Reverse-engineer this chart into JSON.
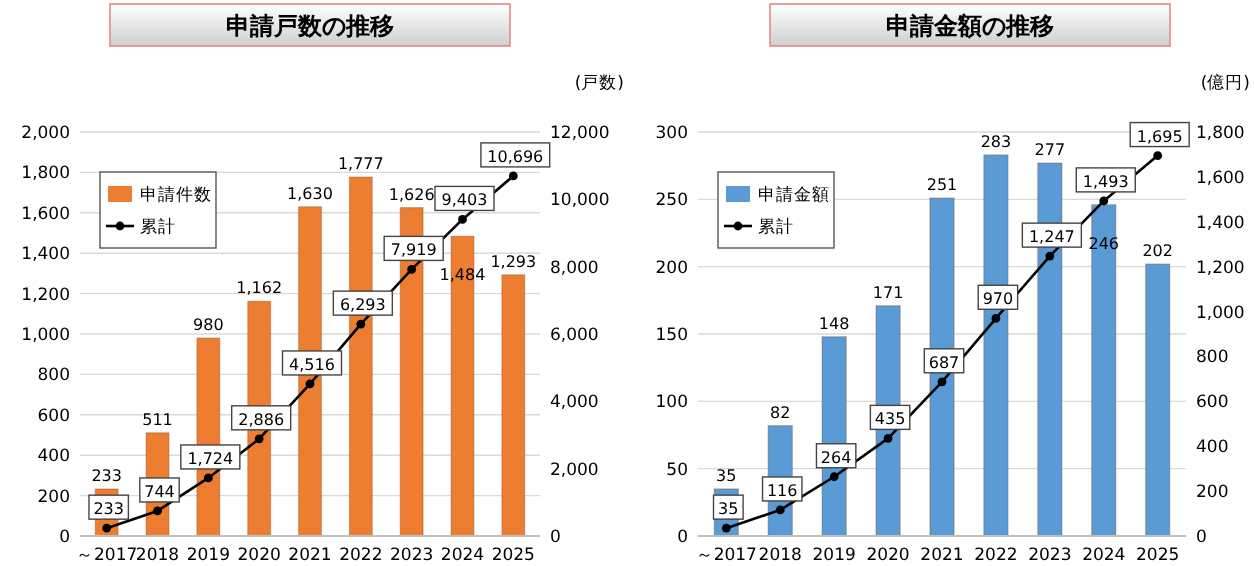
{
  "chart_data": [
    {
      "type": "bar",
      "title": "申請戸数の推移",
      "y2label": "(戸数)",
      "categories": [
        "～2017",
        "2018",
        "2019",
        "2020",
        "2021",
        "2022",
        "2023",
        "2024",
        "2025"
      ],
      "series": [
        {
          "name": "申請件数",
          "color": "#ed7d31",
          "values": [
            233,
            511,
            980,
            1162,
            1630,
            1777,
            1626,
            1484,
            1293
          ],
          "value_labels": [
            "233",
            "511",
            "980",
            "1,162",
            "1,630",
            "1,777",
            "1,626",
            "1,484",
            "1,293"
          ]
        },
        {
          "name": "累計",
          "type": "line",
          "axis": "y2",
          "color": "#000000",
          "values": [
            233,
            744,
            1724,
            2886,
            4516,
            6293,
            7919,
            9403,
            10696
          ],
          "value_labels": [
            "233",
            "744",
            "1,724",
            "2,886",
            "4,516",
            "6,293",
            "7,919",
            "9,403",
            "10,696"
          ]
        }
      ],
      "ylim": [
        0,
        2000
      ],
      "yticks": [
        0,
        200,
        400,
        600,
        800,
        {
          "value": 1000,
          "label": "1,000"
        },
        {
          "value": 1200,
          "label": "1,200"
        },
        {
          "value": 1400,
          "label": "1,400"
        },
        {
          "value": 1600,
          "label": "1,600"
        },
        {
          "value": 1800,
          "label": "1,800"
        },
        {
          "value": 2000,
          "label": "2,000"
        }
      ],
      "y2lim": [
        0,
        12000
      ],
      "y2ticks": [
        0,
        {
          "value": 2000,
          "label": "2,000"
        },
        {
          "value": 4000,
          "label": "4,000"
        },
        {
          "value": 6000,
          "label": "6,000"
        },
        {
          "value": 8000,
          "label": "8,000"
        },
        {
          "value": 10000,
          "label": "10,000"
        },
        {
          "value": 12000,
          "label": "12,000"
        }
      ],
      "grid": "y",
      "legend": "top left",
      "marker": "circle",
      "line_style": "solid"
    },
    {
      "type": "bar",
      "title": "申請金額の推移",
      "y2label": "(億円)",
      "categories": [
        "～2017",
        "2018",
        "2019",
        "2020",
        "2021",
        "2022",
        "2023",
        "2024",
        "2025"
      ],
      "series": [
        {
          "name": "申請金額",
          "color": "#5b9bd5",
          "values": [
            35,
            82,
            148,
            171,
            251,
            283,
            277,
            246,
            202
          ],
          "value_labels": [
            "35",
            "82",
            "148",
            "171",
            "251",
            "283",
            "277",
            "246",
            "202"
          ]
        },
        {
          "name": "累計",
          "type": "line",
          "axis": "y2",
          "color": "#000000",
          "values": [
            35,
            116,
            264,
            435,
            687,
            970,
            1247,
            1493,
            1695
          ],
          "value_labels": [
            "35",
            "116",
            "264",
            "435",
            "687",
            "970",
            "1,247",
            "1,493",
            "1,695"
          ]
        }
      ],
      "ylim": [
        0,
        300
      ],
      "yticks": [
        0,
        50,
        100,
        150,
        200,
        250,
        300
      ],
      "y2lim": [
        0,
        1800
      ],
      "y2ticks": [
        0,
        200,
        400,
        600,
        800,
        {
          "value": 1000,
          "label": "1,000"
        },
        {
          "value": 1200,
          "label": "1,200"
        },
        {
          "value": 1400,
          "label": "1,400"
        },
        {
          "value": 1600,
          "label": "1,600"
        },
        {
          "value": 1800,
          "label": "1,800"
        }
      ],
      "grid": "y",
      "legend": "top left",
      "marker": "circle",
      "line_style": "solid"
    }
  ]
}
